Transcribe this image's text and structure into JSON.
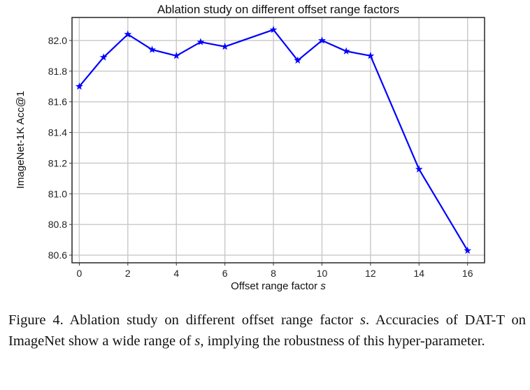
{
  "chart_data": {
    "type": "line",
    "title": "Ablation study on different offset range factors",
    "xlabel": "Offset range factor",
    "xlabel_var": "s",
    "ylabel": "ImageNet-1K Acc@1",
    "x": [
      0,
      1,
      2,
      3,
      4,
      5,
      6,
      8,
      9,
      10,
      11,
      12,
      14,
      16
    ],
    "series": [
      {
        "values": [
          81.7,
          81.89,
          82.04,
          81.94,
          81.9,
          81.99,
          81.96,
          82.07,
          81.87,
          82.0,
          81.93,
          81.9,
          81.16,
          80.63
        ],
        "color": "#0000ff",
        "marker": "star"
      }
    ],
    "xticks": [
      "0",
      "2",
      "4",
      "6",
      "8",
      "10",
      "12",
      "14",
      "16"
    ],
    "yticks": [
      "80.6",
      "80.8",
      "81.0",
      "81.2",
      "81.4",
      "81.6",
      "81.8",
      "82.0"
    ],
    "xlim": [
      -0.3,
      16.7
    ],
    "ylim": [
      80.55,
      82.15
    ],
    "grid": true,
    "legend": "none"
  },
  "caption": {
    "prefix": "Figure 4. Ablation study on different offset range factor ",
    "var1": "s",
    "middle": ". Accuracies of DAT-T on ImageNet show a wide range of ",
    "var2": "s",
    "suffix": ", implying the robustness of this hyper-parameter."
  }
}
